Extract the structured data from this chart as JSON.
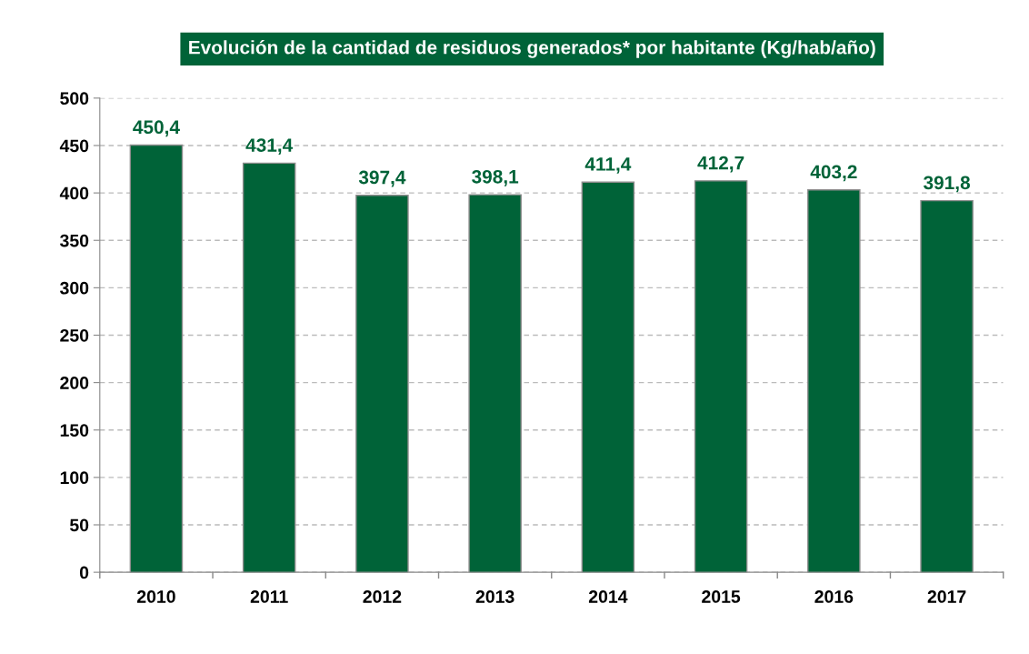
{
  "chart_data": {
    "type": "bar",
    "title": "Evolución de la cantidad de residuos generados* por habitante (Kg/hab/año)",
    "categories": [
      "2010",
      "2011",
      "2012",
      "2013",
      "2014",
      "2015",
      "2016",
      "2017"
    ],
    "values": [
      450.4,
      431.4,
      397.4,
      398.1,
      411.4,
      412.7,
      403.2,
      391.8
    ],
    "value_labels": [
      "450,4",
      "431,4",
      "397,4",
      "398,1",
      "411,4",
      "412,7",
      "403,2",
      "391,8"
    ],
    "color": "#006338",
    "ylim": [
      0,
      500
    ],
    "yticks": [
      0,
      50,
      100,
      150,
      200,
      250,
      300,
      350,
      400,
      450,
      500
    ],
    "grid": "y",
    "legend": false
  }
}
